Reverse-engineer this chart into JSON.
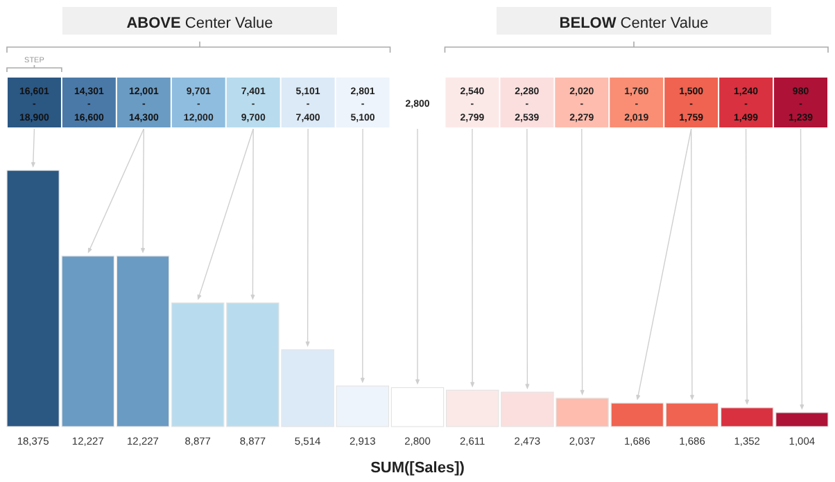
{
  "chart_data": {
    "type": "bar",
    "xlabel": "SUM([Sales])",
    "categories": [
      null,
      null,
      null,
      null,
      null,
      null,
      null,
      null,
      null,
      null,
      null,
      null,
      null,
      null,
      null
    ],
    "values": [
      18375,
      12227,
      12227,
      8877,
      8877,
      5514,
      2913,
      2800,
      2611,
      2473,
      2037,
      1686,
      1686,
      1352,
      1004
    ],
    "colors": [
      "#2b5783",
      "#6a9bc3",
      "#6a9bc3",
      "#b8dcee",
      "#b8dcee",
      "#dceaf7",
      "#edf4fb",
      "#ffffff",
      "#fbe9e8",
      "#fbdfdf",
      "#fdbcae",
      "#ef6350",
      "#ef6350",
      "#d9313f",
      "#ae1237"
    ],
    "value_labels": [
      "18,375",
      "12,227",
      "12,227",
      "8,877",
      "8,877",
      "5,514",
      "2,913",
      "2,800",
      "2,611",
      "2,473",
      "2,037",
      "1,686",
      "1,686",
      "1,352",
      "1,004"
    ],
    "annotations": [
      "ABOVE Center Value",
      "BELOW Center Value",
      "STEP",
      "16,601 - 18,900",
      "14,301 - 16,600",
      "12,001 - 14,300",
      "9,701 - 12,000",
      "7,401 - 9,700",
      "5,101 - 7,400",
      "2,801 - 5,100",
      "2,800",
      "2,540 - 2,799",
      "2,280 - 2,539",
      "2,020 - 2,279",
      "1,760 - 2,019",
      "1,500 - 1,759",
      "1,240 - 1,499",
      "980 - 1,239"
    ]
  }
}
